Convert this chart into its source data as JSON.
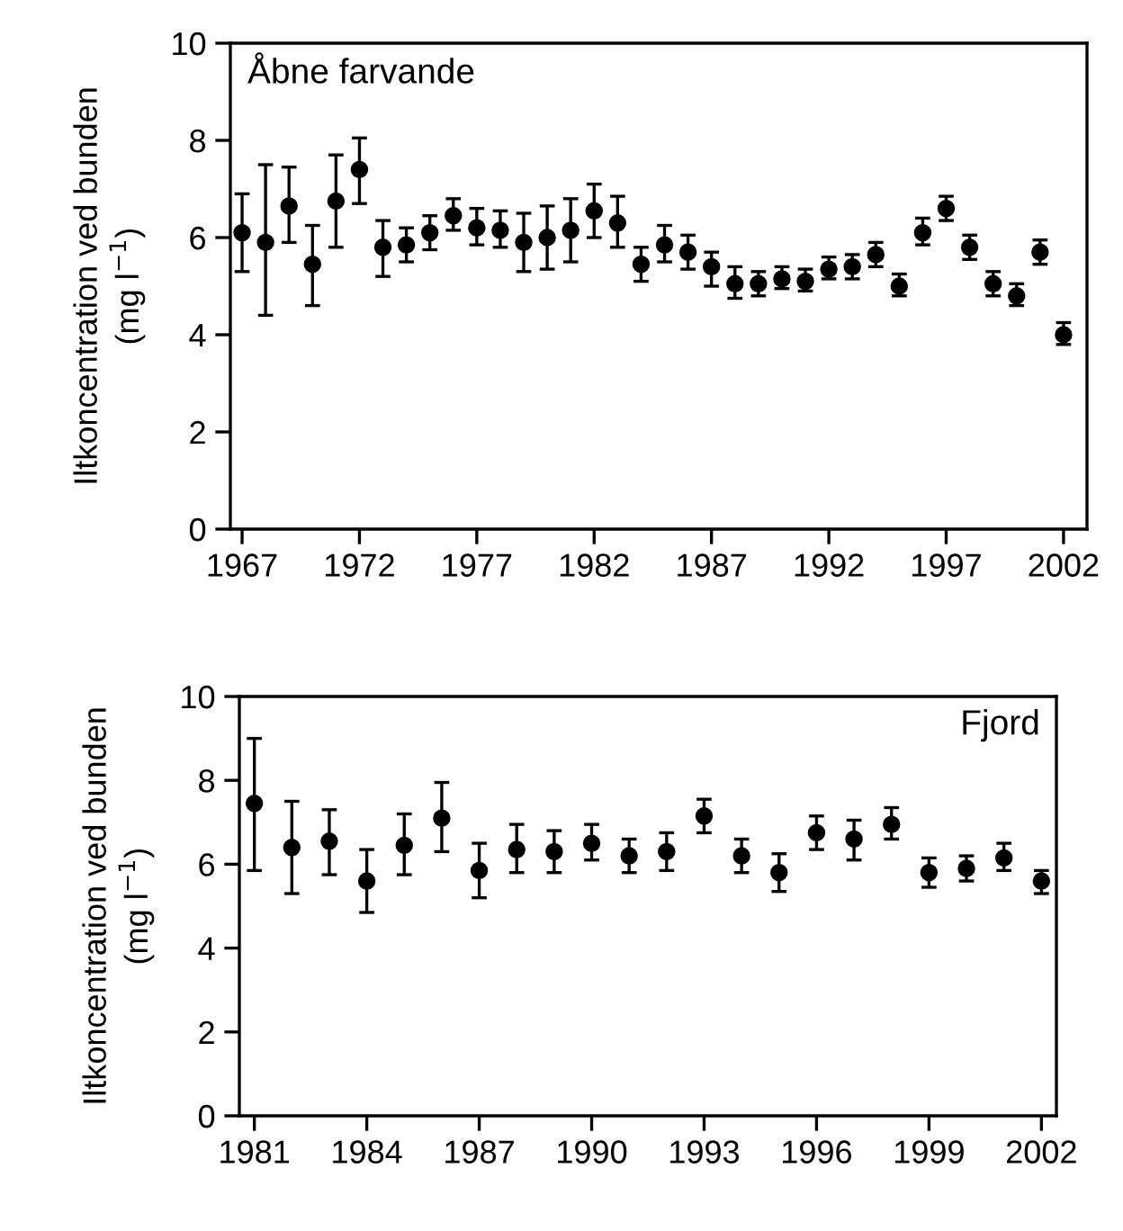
{
  "chart_data": [
    {
      "type": "scatter",
      "ylabel": "Iltkoncentration ved bunden\n(mg l$^{−1}$)",
      "annotations": [
        "Åbne farvande"
      ],
      "x": [
        1967,
        1968,
        1969,
        1970,
        1971,
        1972,
        1973,
        1974,
        1975,
        1976,
        1977,
        1978,
        1979,
        1980,
        1981,
        1982,
        1983,
        1984,
        1985,
        1986,
        1987,
        1988,
        1989,
        1990,
        1991,
        1992,
        1993,
        1994,
        1995,
        1996,
        1997,
        1998,
        1999,
        2000,
        2001,
        2002
      ],
      "series": [
        {
          "color": "#000000",
          "values": [
            6.1,
            5.9,
            6.65,
            5.45,
            6.75,
            7.4,
            5.8,
            5.85,
            6.1,
            6.45,
            6.2,
            6.15,
            5.9,
            6.0,
            6.15,
            6.55,
            6.3,
            5.45,
            5.85,
            5.7,
            5.4,
            5.05,
            5.05,
            5.15,
            5.1,
            5.35,
            5.4,
            5.65,
            5.0,
            6.1,
            6.6,
            5.8,
            5.05,
            4.8,
            5.7,
            4.0
          ],
          "errors": [
            [
              5.3,
              6.9
            ],
            [
              4.4,
              7.5
            ],
            [
              5.9,
              7.45
            ],
            [
              4.6,
              6.25
            ],
            [
              5.8,
              7.7
            ],
            [
              6.7,
              8.05
            ],
            [
              5.2,
              6.35
            ],
            [
              5.5,
              6.2
            ],
            [
              5.75,
              6.45
            ],
            [
              6.15,
              6.8
            ],
            [
              5.85,
              6.6
            ],
            [
              5.8,
              6.55
            ],
            [
              5.3,
              6.5
            ],
            [
              5.35,
              6.65
            ],
            [
              5.5,
              6.8
            ],
            [
              6.0,
              7.1
            ],
            [
              5.8,
              6.85
            ],
            [
              5.1,
              5.8
            ],
            [
              5.5,
              6.25
            ],
            [
              5.35,
              6.05
            ],
            [
              5.0,
              5.7
            ],
            [
              4.75,
              5.4
            ],
            [
              4.8,
              5.3
            ],
            [
              4.95,
              5.4
            ],
            [
              4.9,
              5.35
            ],
            [
              5.15,
              5.6
            ],
            [
              5.15,
              5.65
            ],
            [
              5.4,
              5.9
            ],
            [
              4.8,
              5.25
            ],
            [
              5.85,
              6.4
            ],
            [
              6.35,
              6.85
            ],
            [
              5.55,
              6.05
            ],
            [
              4.8,
              5.3
            ],
            [
              4.6,
              5.05
            ],
            [
              5.45,
              5.95
            ],
            [
              3.8,
              4.25
            ]
          ]
        }
      ],
      "xlim": [
        1966.5,
        2003
      ],
      "xticks": [
        1967,
        1972,
        1977,
        1982,
        1987,
        1992,
        1997,
        2002
      ],
      "ylim": [
        0,
        10
      ],
      "yticks": [
        0,
        2,
        4,
        6,
        8,
        10
      ],
      "grid": false,
      "legend": false,
      "marker": "circle"
    },
    {
      "type": "scatter",
      "ylabel": "Iltkoncentration ved bunden\n(mg l$^{−1}$)",
      "annotations": [
        "Fjord"
      ],
      "x": [
        1981,
        1982,
        1983,
        1984,
        1985,
        1986,
        1987,
        1988,
        1989,
        1990,
        1991,
        1992,
        1993,
        1994,
        1995,
        1996,
        1997,
        1998,
        1999,
        2000,
        2001,
        2002
      ],
      "series": [
        {
          "color": "#000000",
          "values": [
            7.45,
            6.4,
            6.55,
            5.6,
            6.45,
            7.1,
            5.85,
            6.35,
            6.3,
            6.5,
            6.2,
            6.3,
            7.15,
            6.2,
            5.8,
            6.75,
            6.6,
            6.95,
            5.8,
            5.9,
            6.15,
            5.6
          ],
          "errors": [
            [
              5.85,
              9.0
            ],
            [
              5.3,
              7.5
            ],
            [
              5.75,
              7.3
            ],
            [
              4.85,
              6.35
            ],
            [
              5.75,
              7.2
            ],
            [
              6.3,
              7.95
            ],
            [
              5.2,
              6.5
            ],
            [
              5.8,
              6.95
            ],
            [
              5.8,
              6.8
            ],
            [
              6.1,
              6.95
            ],
            [
              5.8,
              6.6
            ],
            [
              5.85,
              6.75
            ],
            [
              6.75,
              7.55
            ],
            [
              5.8,
              6.6
            ],
            [
              5.35,
              6.25
            ],
            [
              6.35,
              7.15
            ],
            [
              6.1,
              7.05
            ],
            [
              6.6,
              7.35
            ],
            [
              5.45,
              6.15
            ],
            [
              5.6,
              6.2
            ],
            [
              5.85,
              6.5
            ],
            [
              5.3,
              5.85
            ]
          ]
        }
      ],
      "xlim": [
        1980.6,
        2002.4
      ],
      "xticks": [
        1981,
        1984,
        1987,
        1990,
        1993,
        1996,
        1999,
        2002
      ],
      "ylim": [
        0,
        10
      ],
      "yticks": [
        0,
        2,
        4,
        6,
        8,
        10
      ],
      "grid": false,
      "legend": false,
      "marker": "circle"
    }
  ]
}
